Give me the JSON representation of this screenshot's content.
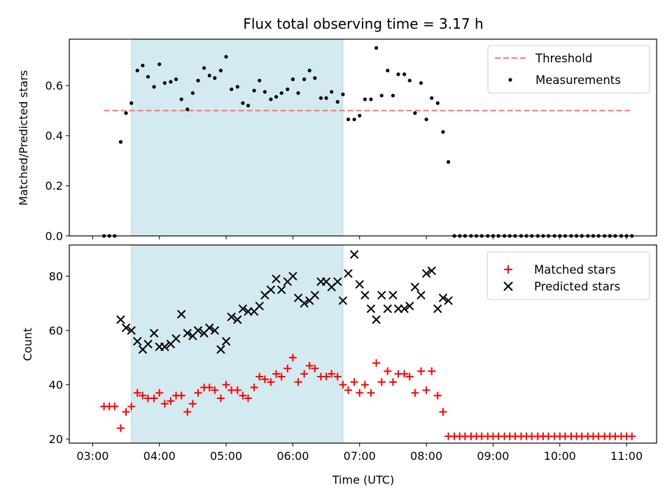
{
  "chart_data": {
    "type": "scatter",
    "title": "Flux total observing time = 3.17 h",
    "xlabel": "Time (UTC)",
    "xlim": [
      2.65,
      11.45
    ],
    "xticks": [
      3,
      4,
      5,
      6,
      7,
      8,
      9,
      10,
      11
    ],
    "xtick_labels": [
      "03:00",
      "04:00",
      "05:00",
      "06:00",
      "07:00",
      "08:00",
      "09:00",
      "10:00",
      "11:00"
    ],
    "shaded_span": {
      "x0": 3.58,
      "x1": 6.75,
      "color": "#d3eaf1"
    },
    "colors": {
      "threshold": "#ff7f7f",
      "measurements": "#000000",
      "matched": "#ff0000",
      "predicted": "#000000"
    },
    "panels": [
      {
        "id": "ratio",
        "ylabel": "Matched/Predicted stars",
        "ylim": [
          0,
          0.785
        ],
        "yticks": [
          0.0,
          0.2,
          0.4,
          0.6
        ],
        "ytick_labels": [
          "0.0",
          "0.2",
          "0.4",
          "0.6"
        ],
        "legend": [
          "Threshold",
          "Measurements"
        ],
        "legend_position": "upper right",
        "threshold": {
          "name": "Threshold",
          "y": 0.5,
          "x0": 3.17,
          "x1": 11.05
        },
        "measurements": {
          "name": "Measurements",
          "x": [
            3.17,
            3.25,
            3.33,
            3.42,
            3.5,
            3.58,
            3.67,
            3.75,
            3.83,
            3.92,
            4.0,
            4.08,
            4.17,
            4.25,
            4.33,
            4.42,
            4.5,
            4.58,
            4.67,
            4.75,
            4.83,
            4.92,
            5.0,
            5.08,
            5.17,
            5.25,
            5.33,
            5.42,
            5.5,
            5.58,
            5.67,
            5.75,
            5.83,
            5.92,
            6.0,
            6.08,
            6.17,
            6.25,
            6.33,
            6.42,
            6.5,
            6.58,
            6.67,
            6.75,
            6.83,
            6.92,
            7.0,
            7.08,
            7.17,
            7.25,
            7.33,
            7.42,
            7.5,
            7.58,
            7.67,
            7.75,
            7.83,
            7.92,
            8.0,
            8.08,
            8.17,
            8.25,
            8.33,
            8.42,
            8.5,
            8.58,
            8.67,
            8.75,
            8.83,
            8.92,
            9.0,
            9.08,
            9.17,
            9.25,
            9.33,
            9.42,
            9.5,
            9.58,
            9.67,
            9.75,
            9.83,
            9.92,
            10.0,
            10.08,
            10.17,
            10.25,
            10.33,
            10.42,
            10.5,
            10.58,
            10.67,
            10.75,
            10.83,
            10.92,
            11.0,
            11.08
          ],
          "y": [
            0.0,
            0.0,
            0.0,
            0.375,
            0.49,
            0.53,
            0.66,
            0.68,
            0.635,
            0.595,
            0.685,
            0.61,
            0.615,
            0.625,
            0.545,
            0.505,
            0.57,
            0.62,
            0.67,
            0.64,
            0.63,
            0.66,
            0.715,
            0.585,
            0.595,
            0.53,
            0.52,
            0.58,
            0.62,
            0.575,
            0.545,
            0.555,
            0.57,
            0.585,
            0.625,
            0.57,
            0.625,
            0.66,
            0.63,
            0.55,
            0.55,
            0.575,
            0.535,
            0.565,
            0.465,
            0.465,
            0.48,
            0.545,
            0.545,
            0.75,
            0.56,
            0.66,
            0.56,
            0.645,
            0.645,
            0.62,
            0.49,
            0.61,
            0.465,
            0.55,
            0.53,
            0.415,
            0.295,
            0.0,
            0.0,
            0.0,
            0.0,
            0.0,
            0.0,
            0.0,
            0.0,
            0.0,
            0.0,
            0.0,
            0.0,
            0.0,
            0.0,
            0.0,
            0.0,
            0.0,
            0.0,
            0.0,
            0.0,
            0.0,
            0.0,
            0.0,
            0.0,
            0.0,
            0.0,
            0.0,
            0.0,
            0.0,
            0.0,
            0.0,
            0.0,
            0.0
          ]
        }
      },
      {
        "id": "count",
        "ylabel": "Count",
        "ylim": [
          18.5,
          91.5
        ],
        "yticks": [
          20,
          40,
          60,
          80
        ],
        "ytick_labels": [
          "20",
          "40",
          "60",
          "80"
        ],
        "legend": [
          "Matched stars",
          "Predicted stars"
        ],
        "legend_position": "upper right",
        "matched": {
          "name": "Matched stars",
          "x": [
            3.17,
            3.25,
            3.33,
            3.42,
            3.5,
            3.58,
            3.67,
            3.75,
            3.83,
            3.92,
            4.0,
            4.08,
            4.17,
            4.25,
            4.33,
            4.42,
            4.5,
            4.58,
            4.67,
            4.75,
            4.83,
            4.92,
            5.0,
            5.08,
            5.17,
            5.25,
            5.33,
            5.42,
            5.5,
            5.58,
            5.67,
            5.75,
            5.83,
            5.92,
            6.0,
            6.08,
            6.17,
            6.25,
            6.33,
            6.42,
            6.5,
            6.58,
            6.67,
            6.75,
            6.83,
            6.92,
            7.0,
            7.08,
            7.17,
            7.25,
            7.33,
            7.42,
            7.5,
            7.58,
            7.67,
            7.75,
            7.83,
            7.92,
            8.0,
            8.08,
            8.17,
            8.25,
            8.33,
            8.42,
            8.5,
            8.58,
            8.67,
            8.75,
            8.83,
            8.92,
            9.0,
            9.08,
            9.17,
            9.25,
            9.33,
            9.42,
            9.5,
            9.58,
            9.67,
            9.75,
            9.83,
            9.92,
            10.0,
            10.08,
            10.17,
            10.25,
            10.33,
            10.42,
            10.5,
            10.58,
            10.67,
            10.75,
            10.83,
            10.92,
            11.0,
            11.08
          ],
          "y": [
            32,
            32,
            32,
            24,
            30,
            32,
            37,
            36,
            35,
            35,
            37,
            33,
            34,
            36,
            36,
            30,
            33,
            37,
            39,
            39,
            38,
            35,
            40,
            38,
            38,
            36,
            35,
            39,
            43,
            42,
            41,
            44,
            43,
            46,
            50,
            41,
            44,
            47,
            46,
            43,
            43,
            44,
            43,
            40,
            38,
            41,
            37,
            40,
            37,
            48,
            41,
            45,
            41,
            44,
            44,
            43,
            37,
            45,
            38,
            45,
            36,
            30,
            21,
            21,
            21,
            21,
            21,
            21,
            21,
            21,
            21,
            21,
            21,
            21,
            21,
            21,
            21,
            21,
            21,
            21,
            21,
            21,
            21,
            21,
            21,
            21,
            21,
            21,
            21,
            21,
            21,
            21,
            21,
            21,
            21,
            21
          ]
        },
        "predicted": {
          "name": "Predicted stars",
          "x": [
            3.42,
            3.5,
            3.58,
            3.67,
            3.75,
            3.83,
            3.92,
            4.0,
            4.08,
            4.17,
            4.25,
            4.33,
            4.42,
            4.5,
            4.58,
            4.67,
            4.75,
            4.83,
            4.92,
            5.0,
            5.08,
            5.17,
            5.25,
            5.33,
            5.42,
            5.5,
            5.58,
            5.67,
            5.75,
            5.83,
            5.92,
            6.0,
            6.08,
            6.17,
            6.25,
            6.33,
            6.42,
            6.5,
            6.58,
            6.67,
            6.75,
            6.83,
            6.92,
            7.0,
            7.08,
            7.17,
            7.25,
            7.33,
            7.42,
            7.5,
            7.58,
            7.67,
            7.75,
            7.83,
            7.92,
            8.0,
            8.08,
            8.17,
            8.25,
            8.33
          ],
          "y": [
            64,
            61,
            60,
            56,
            53,
            55,
            59,
            54,
            54,
            55,
            57,
            66,
            59,
            58,
            60,
            59,
            61,
            60,
            53,
            56,
            65,
            64,
            68,
            67,
            67,
            69,
            73,
            75,
            79,
            75,
            78,
            80,
            72,
            70,
            71,
            73,
            78,
            78,
            76,
            78,
            71,
            81,
            88,
            77,
            73,
            68,
            64,
            73,
            68,
            73,
            68,
            68,
            69,
            76,
            73,
            81,
            82,
            68,
            72,
            71
          ]
        }
      }
    ]
  }
}
